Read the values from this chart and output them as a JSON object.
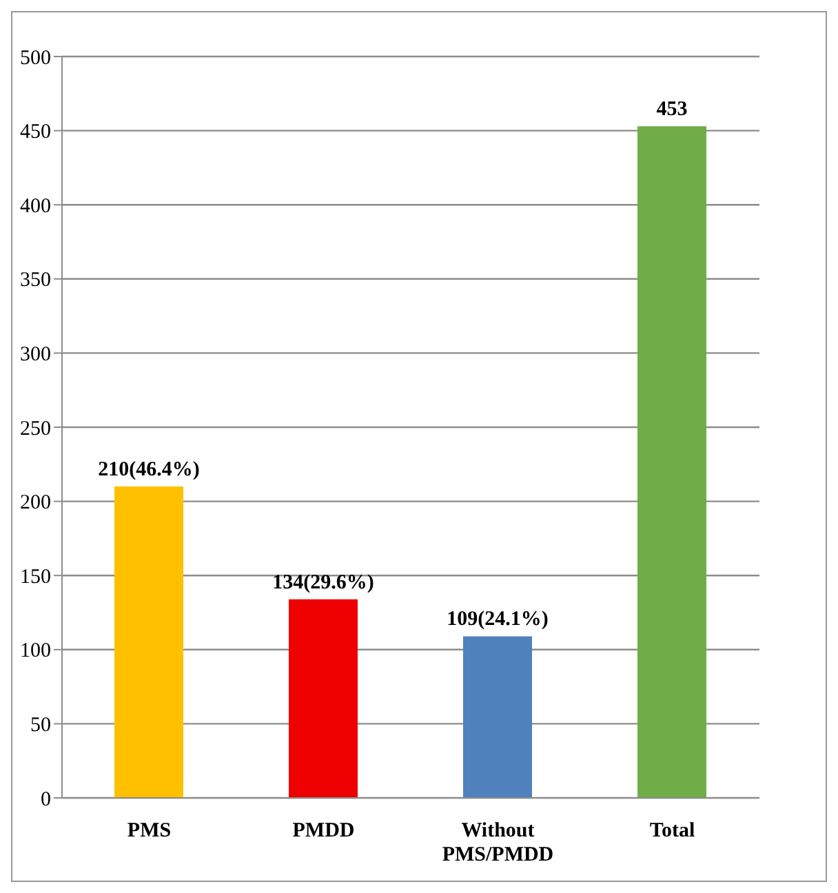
{
  "chart_data": {
    "type": "bar",
    "categories": [
      "PMS",
      "PMDD",
      "Without PMS/PMDD",
      "Total"
    ],
    "values": [
      210,
      134,
      109,
      453
    ],
    "colors": [
      "#ffc000",
      "#ee0000",
      "#4f81bd",
      "#70ad47"
    ],
    "value_labels": [
      "210(46.4%)",
      "134(29.6%)",
      "109(24.1%)",
      "453"
    ],
    "ylim": [
      0,
      500
    ],
    "yticks": [
      0,
      50,
      100,
      150,
      200,
      250,
      300,
      350,
      400,
      450,
      500
    ],
    "grid": "y"
  }
}
